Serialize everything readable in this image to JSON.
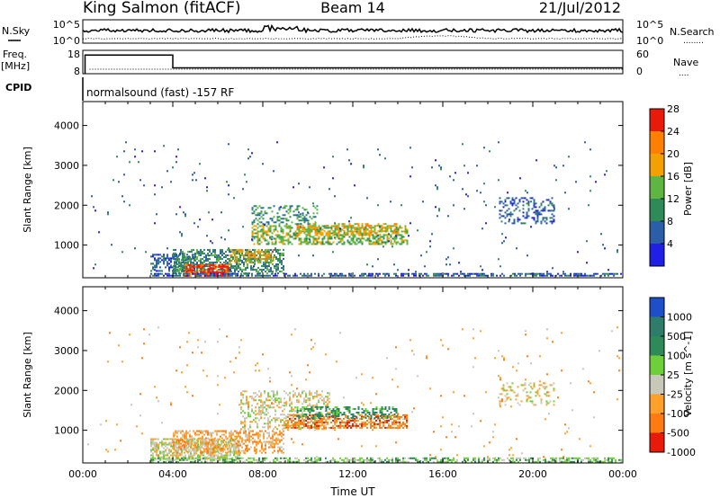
{
  "header": {
    "station": "King Salmon (fitACF)",
    "beam": "Beam 14",
    "date": "21/Jul/2012"
  },
  "summary_panels": {
    "nsky": {
      "label": "N.Sky",
      "tick_top": "10^5",
      "tick_bottom": "10^0",
      "right_tick_top": "10^5",
      "right_tick_bottom": "10^0",
      "right_label": "N.Search",
      "right_legend": "........"
    },
    "freq": {
      "label_line1": "Freq.",
      "label_line2": "[MHz]",
      "tick_top": "18",
      "tick_bottom": "8",
      "right_tick_top": "60",
      "right_tick_bottom": "0",
      "right_label": "Nave",
      "right_legend": "....",
      "step": {
        "before_hours": 4.0,
        "freq_before": 16.0,
        "freq_after": 10.5
      },
      "nave_level": 11.5
    },
    "cpid": {
      "label": "CPID",
      "text": "normalsound (fast) -157 RF"
    }
  },
  "chart_data": [
    {
      "type": "heatmap",
      "name": "power",
      "xlabel": "",
      "ylabel": "Slant Range [km]",
      "x_range_hours": [
        0,
        24
      ],
      "ylim": [
        180,
        4600
      ],
      "y_ticks": [
        1000,
        2000,
        3000,
        4000
      ],
      "x_tick_labels": [
        "00:00",
        "04:00",
        "08:00",
        "12:00",
        "16:00",
        "20:00",
        "00:00"
      ],
      "colorbar": {
        "label": "Power [dB]",
        "ticks": [
          "4",
          "8",
          "12",
          "16",
          "20",
          "24",
          "28"
        ],
        "colors": [
          "#1f1fe6",
          "#2a5fa8",
          "#2e8b57",
          "#5fb542",
          "#f2a100",
          "#ff7f00",
          "#e81a0a"
        ]
      },
      "scatter_regions": [
        {
          "x": [
            3.0,
            5.0
          ],
          "y": [
            320,
            780
          ],
          "level": 1,
          "density": 0.5
        },
        {
          "x": [
            4.0,
            9.0
          ],
          "y": [
            260,
            900
          ],
          "level": 2,
          "density": 0.55
        },
        {
          "x": [
            4.5,
            6.5
          ],
          "y": [
            200,
            520
          ],
          "level": 6,
          "density": 0.7
        },
        {
          "x": [
            6.5,
            8.5
          ],
          "y": [
            500,
            900
          ],
          "level": 4,
          "density": 0.5
        },
        {
          "x": [
            7.5,
            14.5
          ],
          "y": [
            1000,
            1500
          ],
          "level": 3,
          "density": 0.55
        },
        {
          "x": [
            9.5,
            14.0
          ],
          "y": [
            1200,
            1550
          ],
          "level": 4,
          "density": 0.4
        },
        {
          "x": [
            7.5,
            10.5
          ],
          "y": [
            1500,
            2000
          ],
          "level": 2,
          "density": 0.35
        },
        {
          "x": [
            18.5,
            21.0
          ],
          "y": [
            1500,
            2200
          ],
          "level": 1,
          "density": 0.3
        },
        {
          "x": [
            3.0,
            24.0
          ],
          "y": [
            180,
            300
          ],
          "level": 1,
          "density": 0.6
        },
        {
          "x": [
            0.2,
            24.0
          ],
          "y": [
            300,
            3600
          ],
          "level": 1,
          "density": 0.012
        }
      ]
    },
    {
      "type": "heatmap",
      "name": "velocity",
      "xlabel": "Time UT",
      "ylabel": "Slant Range [km]",
      "x_range_hours": [
        0,
        24
      ],
      "ylim": [
        180,
        4600
      ],
      "y_ticks": [
        1000,
        2000,
        3000,
        4000
      ],
      "x_tick_labels": [
        "00:00",
        "04:00",
        "08:00",
        "12:00",
        "16:00",
        "20:00",
        "00:00"
      ],
      "colorbar": {
        "label": "Velocity [m s^-1]",
        "ticks": [
          "1000",
          "500",
          "100",
          "25",
          "-25",
          "-100",
          "-500",
          "-1000"
        ],
        "colors": [
          "#1f4fc8",
          "#2e7d6b",
          "#2e8b57",
          "#6fcf3a",
          "#c8c8b8",
          "#ffa02a",
          "#ff7a10",
          "#e81a0a"
        ]
      },
      "scatter_regions": [
        {
          "x": [
            3.0,
            7.0
          ],
          "y": [
            220,
            800
          ],
          "level": 4,
          "density": 0.7
        },
        {
          "x": [
            4.0,
            9.0
          ],
          "y": [
            400,
            1000
          ],
          "level": 5,
          "density": 0.5
        },
        {
          "x": [
            7.0,
            11.0
          ],
          "y": [
            1000,
            2000
          ],
          "level": 4,
          "density": 0.35
        },
        {
          "x": [
            9.0,
            14.5
          ],
          "y": [
            1000,
            1400
          ],
          "level": 6,
          "density": 0.6
        },
        {
          "x": [
            9.5,
            14.0
          ],
          "y": [
            1250,
            1600
          ],
          "level": 2,
          "density": 0.45
        },
        {
          "x": [
            18.5,
            21.0
          ],
          "y": [
            1600,
            2200
          ],
          "level": 4,
          "density": 0.25
        },
        {
          "x": [
            3.0,
            24.0
          ],
          "y": [
            180,
            320
          ],
          "level": 3,
          "density": 0.55
        },
        {
          "x": [
            0.2,
            24.0
          ],
          "y": [
            300,
            3600
          ],
          "level": 5,
          "density": 0.012
        }
      ]
    }
  ]
}
